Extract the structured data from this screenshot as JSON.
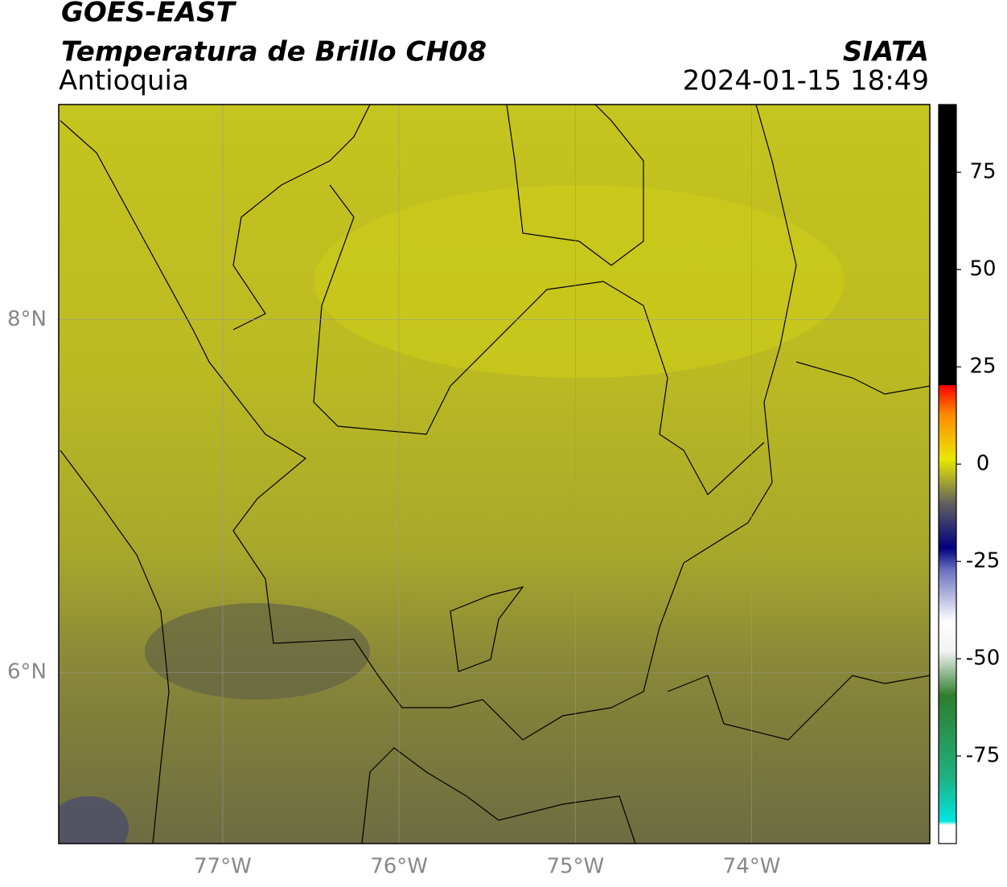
{
  "title": "GOES-EAST",
  "subtitle": "Temperatura de Brillo CH08",
  "region": "Antioquia",
  "source": "SIATA",
  "datetime": "2024-01-15 18:49",
  "map": {
    "xlim": [
      -77.93,
      -72.99
    ],
    "ylim": [
      5.03,
      9.22
    ],
    "xticks": [
      {
        "value": -77,
        "label": "77°W"
      },
      {
        "value": -76,
        "label": "76°W"
      },
      {
        "value": -75,
        "label": "75°W"
      },
      {
        "value": -74,
        "label": "74°W"
      }
    ],
    "yticks": [
      {
        "value": 6,
        "label": "6°N"
      },
      {
        "value": 8,
        "label": "8°N"
      }
    ],
    "grid": true
  },
  "colorbar": {
    "lim": [
      -97.5,
      92.4
    ],
    "ticks": [
      -75,
      -50,
      -25,
      0,
      25,
      50,
      75
    ]
  }
}
